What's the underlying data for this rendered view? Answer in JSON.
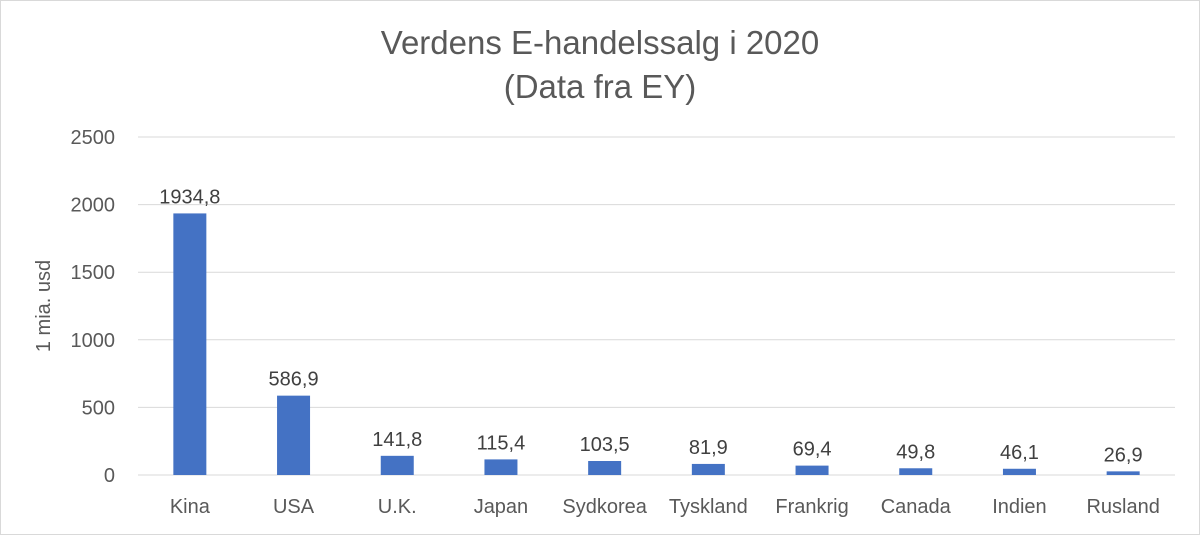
{
  "chart_data": {
    "type": "bar",
    "title": "Verdens E-handelssalg i 2020",
    "subtitle": "(Data fra EY)",
    "xlabel": "",
    "ylabel": "1 mia. usd",
    "ylim": [
      0,
      2500
    ],
    "yticks": [
      "0",
      "500",
      "1000",
      "1500",
      "2000",
      "2500"
    ],
    "grid": true,
    "legend": "none",
    "color": "#4472c4",
    "categories": [
      "Kina",
      "USA",
      "U.K.",
      "Japan",
      "Sydkorea",
      "Tyskland",
      "Frankrig",
      "Canada",
      "Indien",
      "Rusland"
    ],
    "values": [
      1934.8,
      586.9,
      141.8,
      115.4,
      103.5,
      81.9,
      69.4,
      49.8,
      46.1,
      26.9
    ],
    "value_labels": [
      "1934,8",
      "586,9",
      "141,8",
      "115,4",
      "103,5",
      "81,9",
      "69,4",
      "49,8",
      "46,1",
      "26,9"
    ]
  }
}
